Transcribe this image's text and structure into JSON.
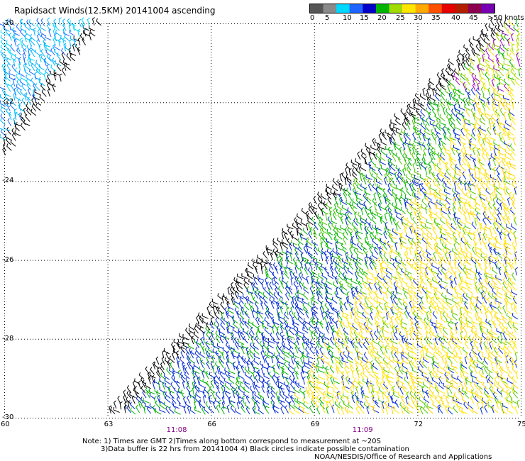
{
  "title": "Rapidsact Winds(12.5KM) 20141004 ascending",
  "legend": {
    "labels": [
      "0",
      "5",
      "10",
      "15",
      "20",
      "25",
      "30",
      "35",
      "40",
      "45",
      ">50 knots"
    ],
    "colors": [
      "#555555",
      "#8a8a8a",
      "#00d8ff",
      "#1e64ff",
      "#0000c8",
      "#00b400",
      "#a0dc00",
      "#ffe600",
      "#ffaa00",
      "#ff5000",
      "#e60000",
      "#b41e00",
      "#8c0050",
      "#7800b4"
    ]
  },
  "map": {
    "lon_range": [
      60,
      75
    ],
    "lat_range": [
      -30,
      -20
    ],
    "lon_ticks": [
      "60",
      "63",
      "66",
      "69",
      "72",
      "75"
    ],
    "lat_ticks": [
      "-20",
      "-22",
      "-24",
      "-26",
      "-28",
      "-30"
    ],
    "times": [
      {
        "label": "11:08",
        "lon": 65.0
      },
      {
        "label": "11:09",
        "lon": 70.4
      }
    ],
    "time_color": "#800080"
  },
  "notes": {
    "line1": "Note: 1) Times are GMT 2)Times along bottom correspond to measurement at ~20S",
    "line2": "3)Data buffer is 22 hrs from 20141004 4) Black circles indicate possible contamination",
    "credit": "NOAA/NESDIS/Office of Research and Applications"
  }
}
